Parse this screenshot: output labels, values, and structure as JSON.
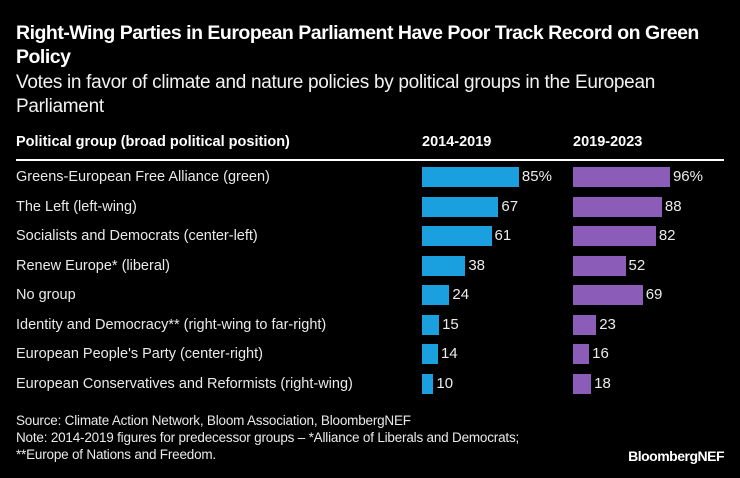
{
  "header": {
    "title": "Right-Wing Parties in European Parliament Have Poor Track Record on Green Policy",
    "subtitle": "Votes in favor of climate and nature policies by political groups in the European Parliament"
  },
  "chart_data": {
    "type": "bar",
    "title": "Right-Wing Parties in European Parliament Have Poor Track Record on Green Policy",
    "subtitle": "Votes in favor of climate and nature policies by political groups in the European Parliament",
    "column_header": "Political group (broad political position)",
    "categories": [
      "Greens-European Free Alliance (green)",
      "The Left (left-wing)",
      "Socialists and Democrats (center-left)",
      "Renew Europe* (liberal)",
      "No group",
      "Identity and Democracy** (right-wing to far-right)",
      "European People's Party (center-right)",
      "European Conservatives and Reformists (right-wing)"
    ],
    "series": [
      {
        "name": "2014-2019",
        "color": "#1a9fdf",
        "values": [
          85,
          67,
          61,
          38,
          24,
          15,
          14,
          10
        ],
        "labels": [
          "85%",
          "67",
          "61",
          "38",
          "24",
          "15",
          "14",
          "10"
        ]
      },
      {
        "name": "2019-2023",
        "color": "#8b5cb8",
        "values": [
          96,
          88,
          82,
          52,
          69,
          23,
          16,
          18
        ],
        "labels": [
          "96%",
          "88",
          "82",
          "52",
          "69",
          "23",
          "16",
          "18"
        ]
      }
    ],
    "unit": "%",
    "xlim": [
      0,
      100
    ]
  },
  "footer": {
    "source": "Source: Climate Action Network, Bloom Association, BloombergNEF",
    "note": "Note: 2014-2019 figures for predecessor groups – *Alliance of Liberals and Democrats; **Europe of Nations and Freedom.",
    "brand": "BloombergNEF"
  }
}
